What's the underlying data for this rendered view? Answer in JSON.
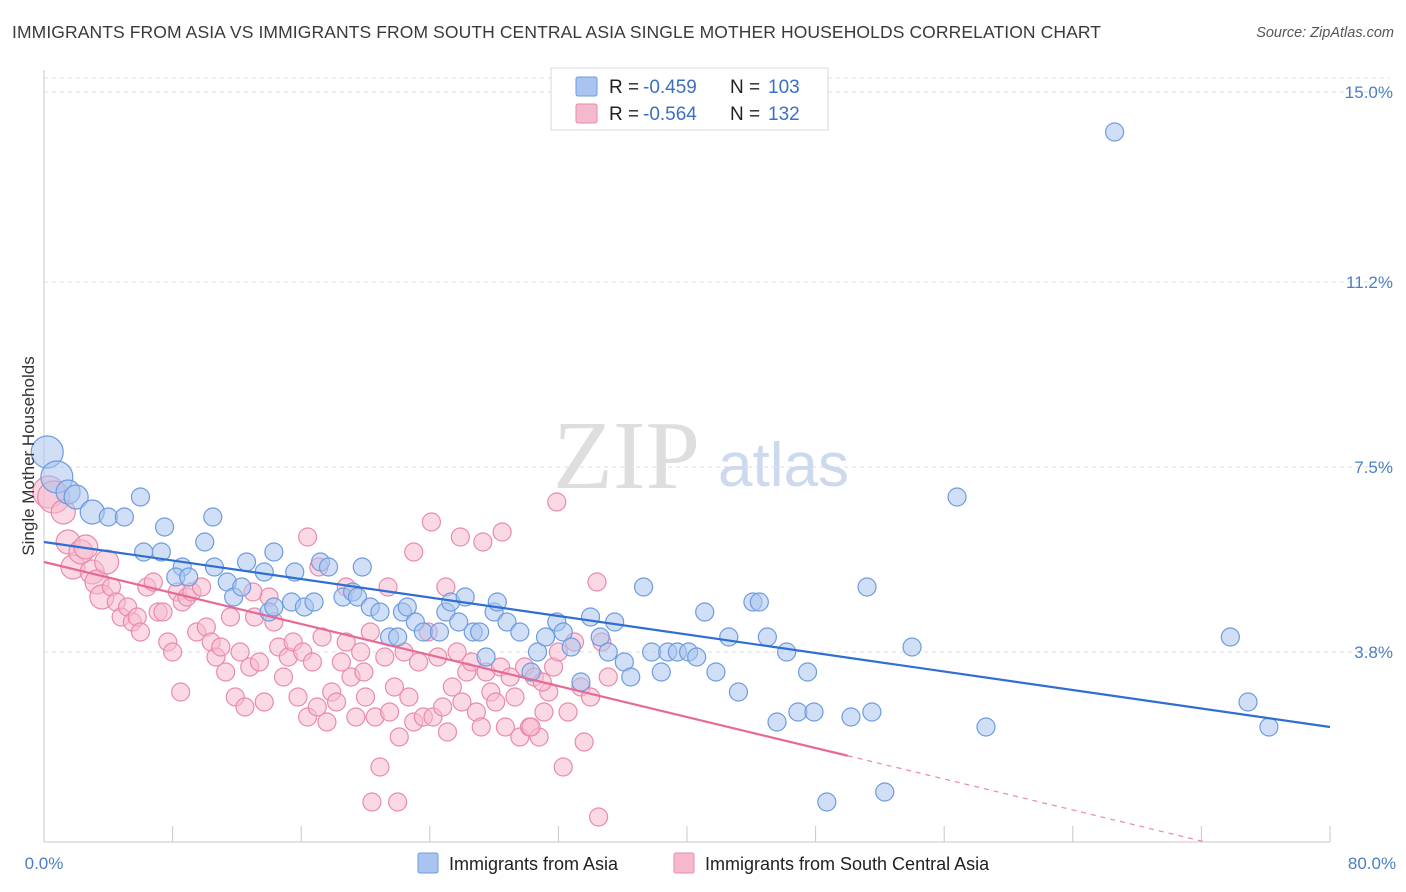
{
  "title": "IMMIGRANTS FROM ASIA VS IMMIGRANTS FROM SOUTH CENTRAL ASIA SINGLE MOTHER HOUSEHOLDS CORRELATION CHART",
  "source": "Source: ZipAtlas.com",
  "watermark": {
    "zip": "ZIP",
    "atlas": "atlas"
  },
  "colors": {
    "blue": "#6d9be0",
    "blue_fill": "#a9c4ee",
    "blue_line": "#2f6fd1",
    "pink": "#e98aab",
    "pink_fill": "#f5b9cd",
    "pink_line": "#e56a95",
    "tick_text": "#4a7fc6",
    "grid": "#dcdcdc"
  },
  "legend": {
    "r_label": "R =",
    "n_label": "N =",
    "entries": [
      {
        "r": "-0.459",
        "n": "103"
      },
      {
        "r": "-0.564",
        "n": "132"
      }
    ]
  },
  "chart_data": {
    "type": "scatter",
    "title": "IMMIGRANTS FROM ASIA VS IMMIGRANTS FROM SOUTH CENTRAL ASIA SINGLE MOTHER HOUSEHOLDS CORRELATION CHART",
    "xlabel": "",
    "ylabel": "Single Mother Households",
    "xlim": [
      0,
      80
    ],
    "ylim": [
      0,
      15.6
    ],
    "x_tick_labels": [
      "0.0%",
      "80.0%"
    ],
    "y_ticks": [
      3.8,
      7.5,
      11.2,
      15.0
    ],
    "y_tick_labels": [
      "3.8%",
      "7.5%",
      "11.2%",
      "15.0%"
    ],
    "grid": true,
    "legend_position": "top-center",
    "series": [
      {
        "name": "Immigrants from Asia",
        "r": -0.459,
        "n": 103,
        "trend": {
          "x0": 0,
          "y0": 6.0,
          "x1": 80,
          "y1": 2.3,
          "solid_to": 80
        },
        "points": [
          [
            0.2,
            7.8
          ],
          [
            0.8,
            7.3
          ],
          [
            1.5,
            7.0
          ],
          [
            2.0,
            6.9
          ],
          [
            3.0,
            6.6
          ],
          [
            4.0,
            6.5
          ],
          [
            5.0,
            6.5
          ],
          [
            6.0,
            6.9
          ],
          [
            7.5,
            6.3
          ],
          [
            10.5,
            6.5
          ],
          [
            10.0,
            6.0
          ],
          [
            6.2,
            5.8
          ],
          [
            7.3,
            5.8
          ],
          [
            8.6,
            5.5
          ],
          [
            8.2,
            5.3
          ],
          [
            9.0,
            5.3
          ],
          [
            10.6,
            5.5
          ],
          [
            11.4,
            5.2
          ],
          [
            11.8,
            4.9
          ],
          [
            12.3,
            5.1
          ],
          [
            12.6,
            5.6
          ],
          [
            13.7,
            5.4
          ],
          [
            14.0,
            4.6
          ],
          [
            14.3,
            4.7
          ],
          [
            14.3,
            5.8
          ],
          [
            15.4,
            4.8
          ],
          [
            15.6,
            5.4
          ],
          [
            16.2,
            4.7
          ],
          [
            16.8,
            4.8
          ],
          [
            17.2,
            5.6
          ],
          [
            17.7,
            5.5
          ],
          [
            18.6,
            4.9
          ],
          [
            19.2,
            5.0
          ],
          [
            19.5,
            4.9
          ],
          [
            19.8,
            5.5
          ],
          [
            20.3,
            4.7
          ],
          [
            20.9,
            4.6
          ],
          [
            21.5,
            4.1
          ],
          [
            22.0,
            4.1
          ],
          [
            22.3,
            4.6
          ],
          [
            22.6,
            4.7
          ],
          [
            23.1,
            4.4
          ],
          [
            23.6,
            4.2
          ],
          [
            24.6,
            4.2
          ],
          [
            25.0,
            4.6
          ],
          [
            25.3,
            4.8
          ],
          [
            25.8,
            4.4
          ],
          [
            26.2,
            4.9
          ],
          [
            26.7,
            4.2
          ],
          [
            27.1,
            4.2
          ],
          [
            27.5,
            3.7
          ],
          [
            28.0,
            4.6
          ],
          [
            28.2,
            4.8
          ],
          [
            28.8,
            4.4
          ],
          [
            29.6,
            4.2
          ],
          [
            30.3,
            3.4
          ],
          [
            30.7,
            3.8
          ],
          [
            31.2,
            4.1
          ],
          [
            31.9,
            4.4
          ],
          [
            32.3,
            4.2
          ],
          [
            32.8,
            3.9
          ],
          [
            33.4,
            3.2
          ],
          [
            34.0,
            4.5
          ],
          [
            34.6,
            4.1
          ],
          [
            35.1,
            3.8
          ],
          [
            35.5,
            4.4
          ],
          [
            36.1,
            3.6
          ],
          [
            36.5,
            3.3
          ],
          [
            37.3,
            5.1
          ],
          [
            37.8,
            3.8
          ],
          [
            38.4,
            3.4
          ],
          [
            38.8,
            3.8
          ],
          [
            39.4,
            3.8
          ],
          [
            40.1,
            3.8
          ],
          [
            40.6,
            3.7
          ],
          [
            41.1,
            4.6
          ],
          [
            41.8,
            3.4
          ],
          [
            42.6,
            4.1
          ],
          [
            43.2,
            3.0
          ],
          [
            44.1,
            4.8
          ],
          [
            44.5,
            4.8
          ],
          [
            45.0,
            4.1
          ],
          [
            45.6,
            2.4
          ],
          [
            46.2,
            3.8
          ],
          [
            46.9,
            2.6
          ],
          [
            47.5,
            3.4
          ],
          [
            47.9,
            2.6
          ],
          [
            48.7,
            0.8
          ],
          [
            50.2,
            2.5
          ],
          [
            51.2,
            5.1
          ],
          [
            51.5,
            2.6
          ],
          [
            52.3,
            1.0
          ],
          [
            54.0,
            3.9
          ],
          [
            56.8,
            6.9
          ],
          [
            58.6,
            2.3
          ],
          [
            66.6,
            14.2
          ],
          [
            73.8,
            4.1
          ],
          [
            74.9,
            2.8
          ],
          [
            76.2,
            2.3
          ]
        ]
      },
      {
        "name": "Immigrants from South Central Asia",
        "r": -0.564,
        "n": 132,
        "trend": {
          "x0": 0,
          "y0": 5.6,
          "x1": 80,
          "y1": -0.6,
          "solid_to": 50
        },
        "points": [
          [
            0.3,
            7.0
          ],
          [
            0.6,
            6.9
          ],
          [
            1.2,
            6.6
          ],
          [
            1.5,
            6.0
          ],
          [
            1.8,
            5.5
          ],
          [
            2.3,
            5.8
          ],
          [
            2.6,
            5.9
          ],
          [
            3.0,
            5.4
          ],
          [
            3.3,
            5.2
          ],
          [
            3.6,
            4.9
          ],
          [
            3.9,
            5.6
          ],
          [
            4.2,
            5.1
          ],
          [
            4.5,
            4.8
          ],
          [
            4.8,
            4.5
          ],
          [
            5.2,
            4.7
          ],
          [
            5.5,
            4.4
          ],
          [
            5.8,
            4.5
          ],
          [
            6.0,
            4.2
          ],
          [
            6.4,
            5.1
          ],
          [
            6.8,
            5.2
          ],
          [
            7.1,
            4.6
          ],
          [
            7.4,
            4.6
          ],
          [
            7.7,
            4.0
          ],
          [
            8.0,
            3.8
          ],
          [
            8.3,
            5.0
          ],
          [
            8.6,
            4.8
          ],
          [
            8.9,
            4.9
          ],
          [
            9.2,
            5.0
          ],
          [
            9.5,
            4.2
          ],
          [
            9.8,
            5.1
          ],
          [
            10.1,
            4.3
          ],
          [
            10.4,
            4.0
          ],
          [
            10.7,
            3.7
          ],
          [
            11.0,
            3.9
          ],
          [
            11.3,
            3.4
          ],
          [
            11.6,
            4.5
          ],
          [
            11.9,
            2.9
          ],
          [
            12.2,
            3.8
          ],
          [
            12.5,
            2.7
          ],
          [
            12.8,
            3.5
          ],
          [
            13.1,
            4.5
          ],
          [
            13.4,
            3.6
          ],
          [
            13.7,
            2.8
          ],
          [
            14.0,
            4.9
          ],
          [
            14.3,
            4.4
          ],
          [
            14.6,
            3.9
          ],
          [
            14.9,
            3.3
          ],
          [
            15.2,
            3.7
          ],
          [
            15.5,
            4.0
          ],
          [
            15.8,
            2.9
          ],
          [
            16.1,
            3.8
          ],
          [
            16.4,
            2.5
          ],
          [
            16.7,
            3.6
          ],
          [
            17.0,
            2.7
          ],
          [
            17.3,
            4.1
          ],
          [
            17.6,
            2.4
          ],
          [
            17.9,
            3.0
          ],
          [
            18.2,
            2.8
          ],
          [
            18.5,
            3.6
          ],
          [
            18.8,
            4.0
          ],
          [
            19.1,
            3.3
          ],
          [
            19.4,
            2.5
          ],
          [
            19.7,
            3.8
          ],
          [
            20.0,
            2.9
          ],
          [
            20.3,
            4.2
          ],
          [
            20.6,
            2.5
          ],
          [
            20.9,
            1.5
          ],
          [
            21.2,
            3.7
          ],
          [
            21.5,
            2.6
          ],
          [
            21.8,
            3.1
          ],
          [
            22.1,
            2.1
          ],
          [
            22.4,
            3.8
          ],
          [
            22.7,
            2.9
          ],
          [
            23.0,
            2.4
          ],
          [
            23.3,
            3.6
          ],
          [
            23.6,
            2.5
          ],
          [
            23.9,
            4.2
          ],
          [
            24.2,
            2.5
          ],
          [
            24.5,
            3.7
          ],
          [
            24.8,
            2.7
          ],
          [
            25.1,
            2.2
          ],
          [
            25.4,
            3.1
          ],
          [
            25.7,
            3.8
          ],
          [
            26.0,
            2.8
          ],
          [
            26.3,
            3.4
          ],
          [
            26.6,
            3.6
          ],
          [
            26.9,
            2.6
          ],
          [
            27.2,
            2.3
          ],
          [
            27.5,
            3.4
          ],
          [
            27.8,
            3.0
          ],
          [
            28.1,
            2.8
          ],
          [
            28.4,
            3.5
          ],
          [
            28.7,
            2.3
          ],
          [
            29.0,
            3.3
          ],
          [
            29.3,
            2.9
          ],
          [
            29.6,
            2.1
          ],
          [
            29.9,
            3.5
          ],
          [
            30.2,
            2.3
          ],
          [
            30.5,
            3.3
          ],
          [
            30.8,
            2.1
          ],
          [
            31.1,
            2.6
          ],
          [
            31.4,
            3.0
          ],
          [
            31.7,
            3.5
          ],
          [
            32.0,
            3.8
          ],
          [
            32.3,
            1.5
          ],
          [
            32.6,
            2.6
          ],
          [
            33.0,
            4.0
          ],
          [
            33.4,
            3.1
          ],
          [
            34.0,
            2.9
          ],
          [
            8.5,
            3.0
          ],
          [
            13.0,
            5.0
          ],
          [
            16.4,
            6.1
          ],
          [
            17.1,
            5.5
          ],
          [
            18.8,
            5.1
          ],
          [
            19.9,
            3.4
          ],
          [
            20.4,
            0.8
          ],
          [
            21.4,
            5.1
          ],
          [
            22.0,
            0.8
          ],
          [
            23.0,
            5.8
          ],
          [
            25.0,
            5.1
          ],
          [
            25.9,
            6.1
          ],
          [
            27.3,
            6.0
          ],
          [
            28.5,
            6.2
          ],
          [
            30.3,
            2.3
          ],
          [
            31.0,
            3.2
          ],
          [
            34.4,
            5.2
          ],
          [
            35.1,
            3.3
          ],
          [
            34.7,
            4.0
          ],
          [
            31.9,
            6.8
          ],
          [
            24.1,
            6.4
          ],
          [
            33.6,
            2.0
          ],
          [
            34.5,
            0.5
          ]
        ]
      }
    ]
  },
  "bottom_legend": [
    "Immigrants from Asia",
    "Immigrants from South Central Asia"
  ]
}
